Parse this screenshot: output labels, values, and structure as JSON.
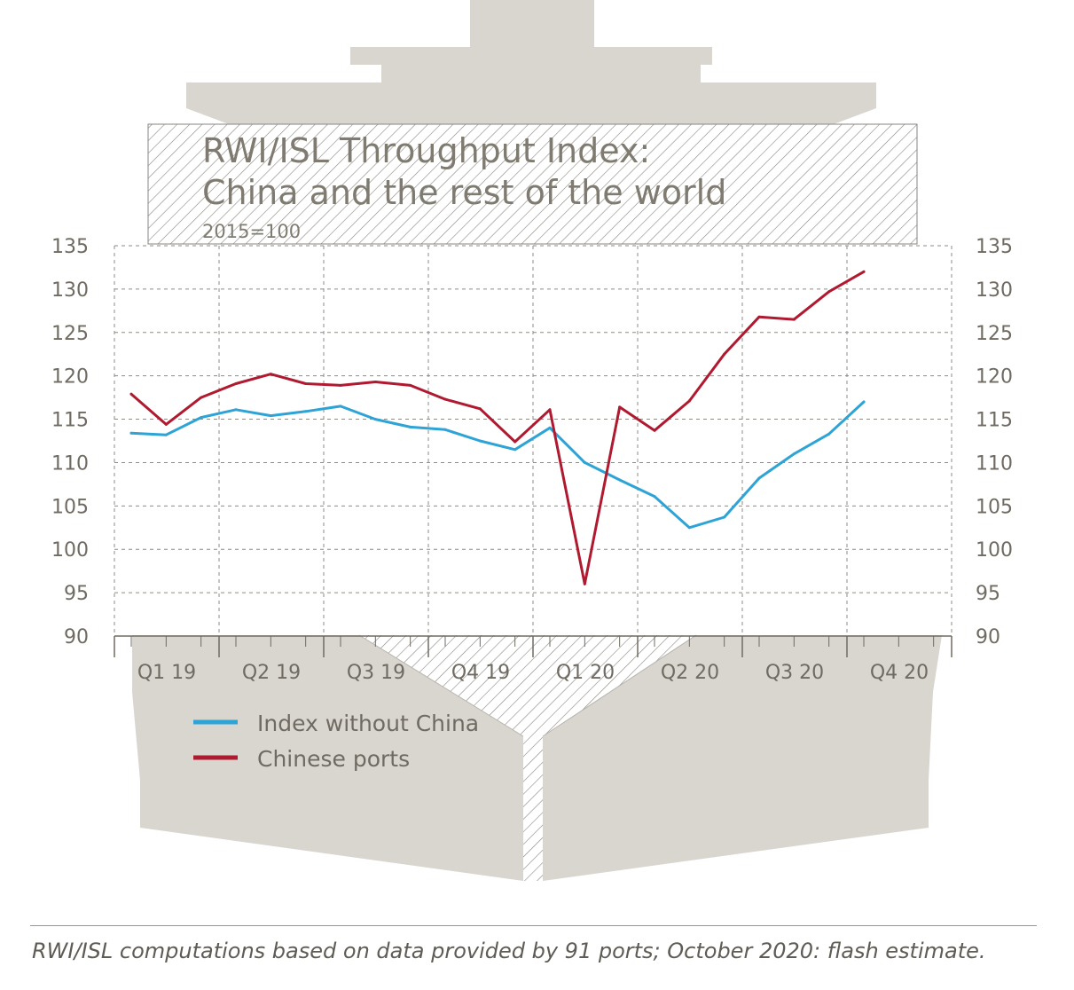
{
  "colors": {
    "ship": "#d9d6d0",
    "hatch": "#8a8680",
    "index_without_china": "#2ea3d6",
    "chinese_ports": "#b01a30",
    "grid": "#8f8b85",
    "text": "#6f6b62"
  },
  "chart_data": {
    "type": "line",
    "title": "RWI/ISL Throughput Index:\nChina and the rest of the world",
    "title_line1": "RWI/ISL Throughput Index:",
    "title_line2": "China and the rest of the world",
    "subtitle": "2015=100",
    "xlabel": "",
    "ylabel": "",
    "ylim": [
      90,
      135
    ],
    "yticks": [
      90,
      95,
      100,
      105,
      110,
      115,
      120,
      125,
      130,
      135
    ],
    "y_axis_sides": [
      "left",
      "right"
    ],
    "grid": true,
    "quarters": [
      "Q1 19",
      "Q2 19",
      "Q3 19",
      "Q4 19",
      "Q1 20",
      "Q2 20",
      "Q3 20",
      "Q4 20"
    ],
    "x_index": [
      0,
      1,
      2,
      3,
      4,
      5,
      6,
      7,
      8,
      9,
      10,
      11,
      12,
      13,
      14,
      15,
      16,
      17,
      18,
      19,
      20,
      21
    ],
    "series": [
      {
        "name": "Index without China",
        "color": "#2ea3d6",
        "values": [
          113.4,
          113.2,
          115.2,
          116.1,
          115.4,
          115.9,
          116.5,
          115.0,
          114.1,
          113.8,
          112.5,
          111.5,
          114.0,
          110.0,
          108.0,
          106.1,
          102.5,
          103.7,
          108.2,
          111.0,
          113.3,
          117.0
        ]
      },
      {
        "name": "Chinese ports",
        "color": "#b01a30",
        "values": [
          117.9,
          114.4,
          117.5,
          119.1,
          120.2,
          119.1,
          118.9,
          119.3,
          118.9,
          117.3,
          116.2,
          112.4,
          116.1,
          96.0,
          116.4,
          113.7,
          117.1,
          122.5,
          126.8,
          126.5,
          129.7,
          132.0
        ]
      }
    ],
    "legend": {
      "placement": "bottom-left"
    }
  },
  "footer": {
    "source_note": "RWI/ISL computations based on data provided by 91 ports; October 2020: flash estimate."
  }
}
